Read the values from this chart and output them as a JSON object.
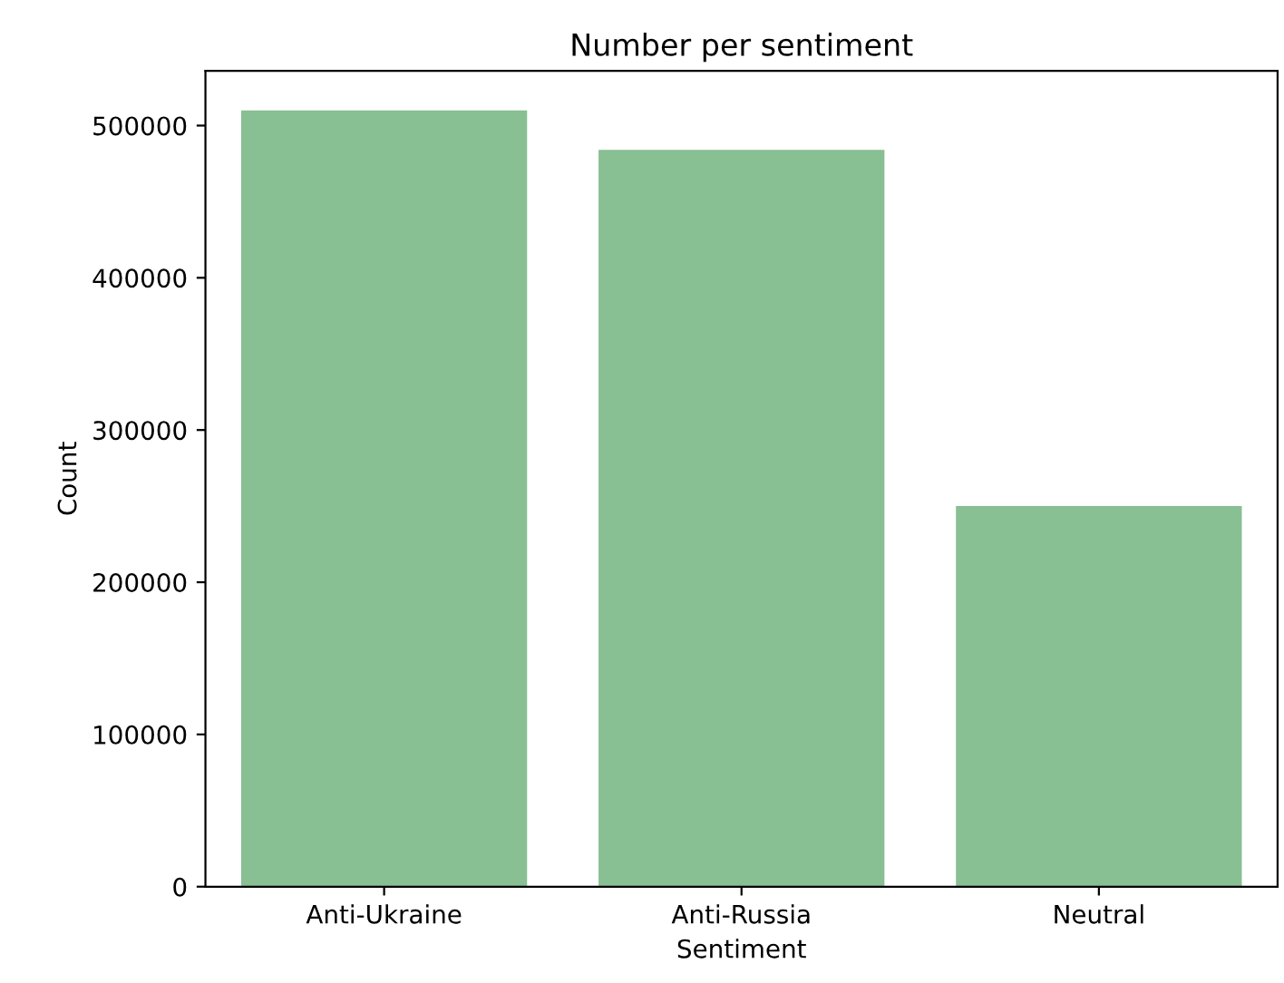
{
  "chart_data": {
    "type": "bar",
    "title": "Number per sentiment",
    "xlabel": "Sentiment",
    "ylabel": "Count",
    "categories": [
      "Anti-Ukraine",
      "Anti-Russia",
      "Neutral"
    ],
    "values": [
      510000,
      484000,
      250000
    ],
    "color": "#88bf93",
    "ylim": [
      0,
      536000
    ],
    "yticks": [
      0,
      100000,
      200000,
      300000,
      400000,
      500000
    ],
    "grid": false
  }
}
